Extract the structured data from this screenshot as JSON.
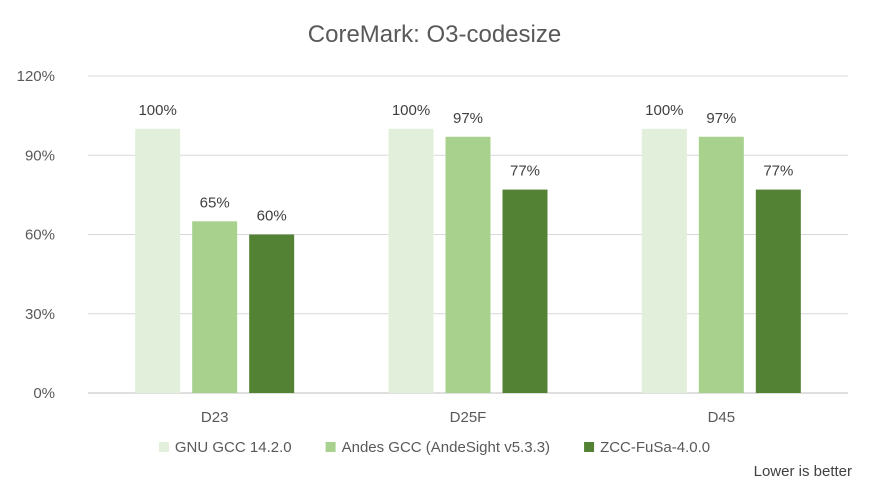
{
  "chart_data": {
    "type": "bar",
    "title": "CoreMark: O3-codesize",
    "categories": [
      "D23",
      "D25F",
      "D45"
    ],
    "series": [
      {
        "name": "GNU GCC 14.2.0",
        "values": [
          100,
          100,
          100
        ],
        "labels": [
          "100%",
          "100%",
          "100%"
        ],
        "color": "#e2efda"
      },
      {
        "name": "Andes GCC (AndeSight v5.3.3)",
        "values": [
          65,
          97,
          97
        ],
        "labels": [
          "65%",
          "97%",
          "97%"
        ],
        "color": "#a9d18e"
      },
      {
        "name": "ZCC-FuSa-4.0.0",
        "values": [
          60,
          77,
          77
        ],
        "labels": [
          "60%",
          "77%",
          "77%"
        ],
        "color": "#548235"
      }
    ],
    "yticks": [
      "0%",
      "30%",
      "60%",
      "90%",
      "120%"
    ],
    "ytick_values": [
      0,
      30,
      60,
      90,
      120
    ],
    "ylim": [
      0,
      120
    ],
    "grid": true,
    "legend_position": "bottom",
    "xlabel": "",
    "ylabel": ""
  },
  "note": "Lower is better",
  "colors": {
    "grid": "#d9d9d9",
    "axis": "#bfbfbf"
  }
}
